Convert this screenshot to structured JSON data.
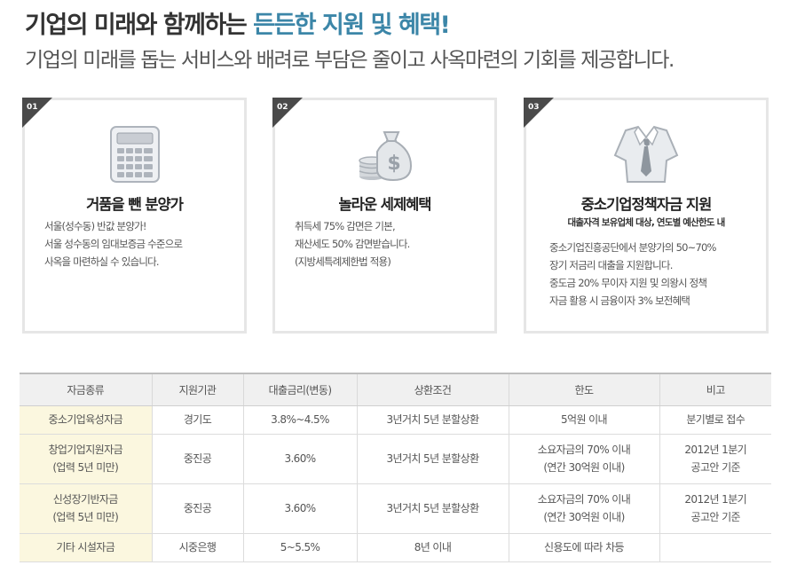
{
  "header": {
    "title_main": "기업의 미래와 함께하는 ",
    "title_accent": "든든한 지원 및 혜택!",
    "subtitle": "기업의 미래를 돕는 서비스와 배려로 부담은 줄이고 사옥마련의 기회를 제공합니다."
  },
  "colors": {
    "accent": "#3c86a8",
    "corner": "#4a4a4a",
    "card_border": "#e6e6e6",
    "row_highlight": "#fbf7df"
  },
  "cards": [
    {
      "num": "01",
      "icon": "calculator-icon",
      "title": "거품을 뺀 분양가",
      "subtitle": "",
      "lines": [
        "서울(성수동) 반값 분양가!",
        "서울 성수동의 임대보증금 수준으로",
        "사옥을 마련하실 수 있습니다."
      ]
    },
    {
      "num": "02",
      "icon": "money-bag-icon",
      "title": "놀라운 세제혜택",
      "subtitle": "",
      "lines": [
        "취득세 75% 감면은 기본,",
        "재산세도 50% 감면받습니다.",
        "(지방세특례제한법 적용)"
      ]
    },
    {
      "num": "03",
      "icon": "shirt-tie-icon",
      "title": "중소기업정책자금 지원",
      "subtitle": "대출자격 보유업체 대상, 연도별 예산한도 내",
      "lines": [
        "중소기업진흥공단에서 분양가의 50~70%",
        "장기 저금리 대출을 지원합니다.",
        "중도금 20% 무이자 지원 및 의왕시 정책",
        "자금 활용 시 금융이자 3% 보전혜택"
      ]
    }
  ],
  "table": {
    "headers": [
      "자금종류",
      "지원기관",
      "대출금리(변동)",
      "상환조건",
      "한도",
      "비고"
    ],
    "rows": [
      {
        "type": [
          "중소기업육성자금"
        ],
        "org": "경기도",
        "rate": "3.8%~4.5%",
        "repay": "3년거치 5년 분할상환",
        "limit": [
          "5억원 이내"
        ],
        "note": [
          "분기별로 접수"
        ]
      },
      {
        "type": [
          "창업기업지원자금",
          "(업력 5년 미만)"
        ],
        "org": "중진공",
        "rate": "3.60%",
        "repay": "3년거치 5년 분할상환",
        "limit": [
          "소요자금의 70% 이내",
          "(연간 30억원 이내)"
        ],
        "note": [
          "2012년 1분기",
          "공고안 기준"
        ]
      },
      {
        "type": [
          "신성장기반자금",
          "(업력 5년 미만)"
        ],
        "org": "중진공",
        "rate": "3.60%",
        "repay": "3년거치 5년 분할상환",
        "limit": [
          "소요자금의 70% 이내",
          "(연간 30억원 이내)"
        ],
        "note": [
          "2012년 1분기",
          "공고안 기준"
        ]
      },
      {
        "type": [
          "기타 시설자금"
        ],
        "org": "시중은행",
        "rate": "5~5.5%",
        "repay": "8년 이내",
        "limit": [
          "신용도에 따라 차등"
        ],
        "note": [
          ""
        ]
      }
    ]
  }
}
